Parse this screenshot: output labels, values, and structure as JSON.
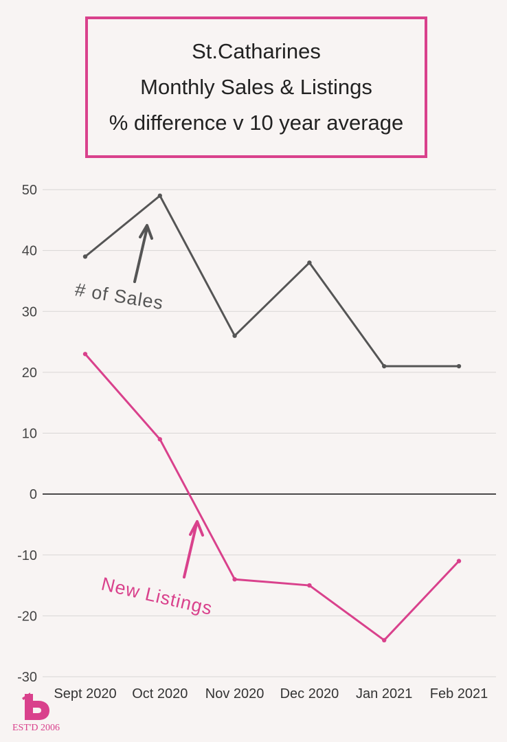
{
  "title_lines": [
    "St.Catharines",
    "Monthly Sales & Listings",
    "% difference v 10 year average"
  ],
  "colors": {
    "sales": "#555555",
    "listings": "#d9418c",
    "brand": "#d9418c",
    "background": "#f8f4f3"
  },
  "logo": {
    "icon": "b-logo-icon",
    "text": "EST'D 2006"
  },
  "chart_data": {
    "type": "line",
    "title": "St.Catharines Monthly Sales & Listings % difference v 10 year average",
    "categories": [
      "Sept 2020",
      "Oct 2020",
      "Nov 2020",
      "Dec 2020",
      "Jan 2021",
      "Feb 2021"
    ],
    "ylim": [
      -30,
      50
    ],
    "yticks": [
      50,
      40,
      30,
      20,
      10,
      0,
      -10,
      -20,
      -30
    ],
    "grid": true,
    "series": [
      {
        "name": "# of Sales",
        "values": [
          39,
          49,
          26,
          38,
          21,
          21
        ]
      },
      {
        "name": "New Listings",
        "values": [
          23,
          9,
          -14,
          -15,
          -24,
          -11
        ]
      }
    ]
  }
}
